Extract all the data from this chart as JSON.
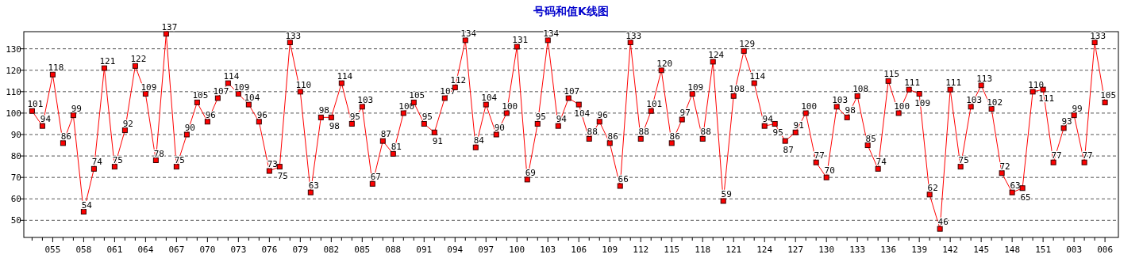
{
  "chart_data": {
    "type": "line",
    "title": "号码和值K线图",
    "categories": [
      null,
      null,
      "055",
      null,
      null,
      "058",
      null,
      null,
      "061",
      null,
      null,
      "064",
      null,
      null,
      "067",
      null,
      null,
      "070",
      null,
      null,
      "073",
      null,
      null,
      "076",
      null,
      null,
      "079",
      null,
      null,
      "082",
      null,
      null,
      "085",
      null,
      null,
      "088",
      null,
      null,
      "091",
      null,
      null,
      "094",
      null,
      null,
      "097",
      null,
      null,
      "100",
      null,
      null,
      "103",
      null,
      null,
      "106",
      null,
      null,
      "109",
      null,
      null,
      "112",
      null,
      null,
      "115",
      null,
      null,
      "118",
      null,
      null,
      "121",
      null,
      null,
      "124",
      null,
      null,
      "127",
      null,
      null,
      "130",
      null,
      null,
      "133",
      null,
      null,
      "136",
      null,
      null,
      "139",
      null,
      null,
      "142",
      null,
      null,
      "145",
      null,
      null,
      "148",
      null,
      null,
      "151",
      null,
      null,
      "003",
      null,
      null,
      "006"
    ],
    "values": [
      101,
      94,
      118,
      86,
      99,
      54,
      74,
      121,
      75,
      92,
      122,
      109,
      78,
      137,
      75,
      90,
      105,
      96,
      107,
      114,
      109,
      104,
      96,
      73,
      75,
      133,
      110,
      63,
      98,
      98,
      114,
      95,
      103,
      67,
      87,
      81,
      100,
      105,
      95,
      91,
      107,
      112,
      134,
      84,
      104,
      90,
      100,
      131,
      69,
      95,
      134,
      94,
      107,
      104,
      88,
      96,
      86,
      66,
      133,
      88,
      101,
      120,
      86,
      97,
      109,
      88,
      124,
      59,
      108,
      129,
      114,
      94,
      95,
      87,
      91,
      100,
      77,
      70,
      103,
      98,
      108,
      85,
      74,
      115,
      100,
      111,
      109,
      62,
      46,
      111,
      75,
      103,
      113,
      102,
      72,
      63,
      65,
      110,
      111,
      77,
      93,
      99,
      77,
      133,
      105
    ],
    "color": "#ff0000",
    "ylim": [
      42,
      138
    ],
    "yticks": [
      50,
      60,
      70,
      80,
      90,
      100,
      110,
      120,
      130
    ],
    "grid": "y",
    "marker": "square",
    "line_style": "solid",
    "data_labels": true
  }
}
